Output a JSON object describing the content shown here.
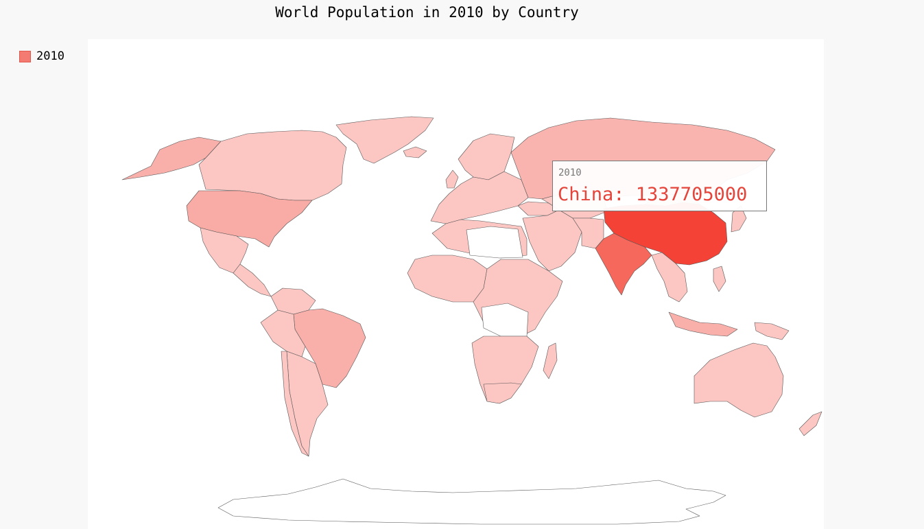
{
  "chart": {
    "title": "World Population in 2010 by Country",
    "legend": {
      "label": "2010",
      "color": "#f47b72",
      "position": "top-left"
    }
  },
  "tooltip": {
    "series": "2010",
    "country": "China",
    "value": "1337705000",
    "text": "China: 1337705000",
    "color": "#e5443a"
  },
  "chart_data": {
    "type": "choropleth",
    "title": "World Population in 2010 by Country",
    "series": [
      {
        "name": "2010",
        "highlighted": {
          "country": "China",
          "value": 1337705000
        }
      }
    ],
    "colors": {
      "max": "#f44336",
      "high": "#f6685c",
      "mid": "#f9aba5",
      "low": "#fcc6c3",
      "no_data": "#ffffff"
    }
  }
}
